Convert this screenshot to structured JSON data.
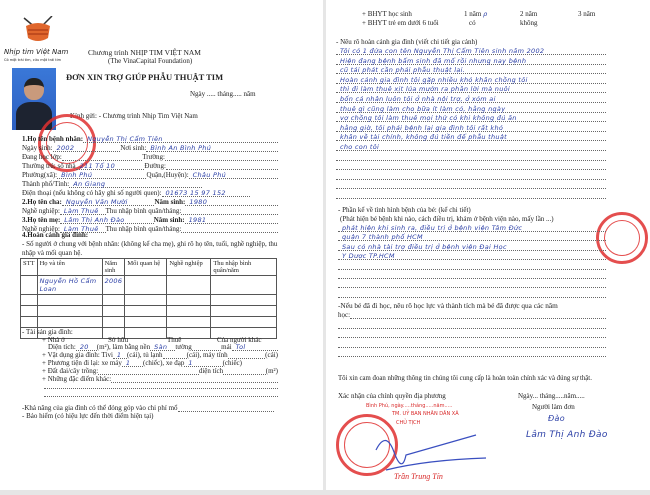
{
  "header": {
    "logo_text": "Nhịp tim Việt Nam",
    "logo_tagline": "Có một trái tim, cứu một trái tim",
    "program": "Chương trình NHỊP TIM VIỆT NAM",
    "foundation": "(The VinaCapital Foundation)",
    "title": "ĐƠN XIN TRỢ GIÚP PHẪU THUẬT TIM",
    "date_line": "Ngày ..... tháng..... năm",
    "addressee_label": "Kính gửi:",
    "addressee": "- Chương trình Nhịp Tim Việt Nam"
  },
  "patient": {
    "name_label": "1.Họ tên bệnh nhân:",
    "name": "Nguyễn Thị Cẩm Tiên",
    "dob_label": "Ngày sinh:",
    "dob": "2002",
    "birthplace_label": "Nơi sinh:",
    "birthplace": "Bình An Bình Phú",
    "grade_label": "Đang học lớp:",
    "school_label": "Trường:",
    "residence_label": "Thường trú: số nhà",
    "residence": "211 Tổ 10",
    "street_label": "Đường:",
    "ward_label": "Phường(xã):",
    "ward": "Bình Phú",
    "district_label": "Quận,(Huyện):",
    "district": "Châu Phú",
    "city_label": "Thành phố/Tỉnh:",
    "city": "An Giang",
    "phone_label": "Điện thoại (nếu không có hãy ghi số người quen):",
    "phone": "01673 15 97 152"
  },
  "father": {
    "label": "2.Họ tên cha:",
    "name": "Nguyễn Văn Mười",
    "birth_label": "Năm sinh:",
    "birth": "1980",
    "job_label": "Nghề nghiệp:",
    "job": "Làm Thuê",
    "income_label": "Thu nhập bình quân/tháng:"
  },
  "mother": {
    "label": "3.Họ tên mẹ:",
    "name": "Lâm Thị Anh Đào",
    "birth_label": "Năm sinh:",
    "birth": "1981",
    "job_label": "Nghề nghiệp:",
    "job": "Làm Thuê",
    "income_label": "Thu nhập bình quân/tháng:"
  },
  "family": {
    "heading": "4.Hoàn cảnh gia đình:",
    "note_1": "- Số người ở chung với bệnh nhân: (không kể cha mẹ), ghi rõ họ tên, tuổi, nghề nghiệp, thu",
    "note_2": "nhập và mối quan hệ.",
    "table": {
      "headers": [
        "STT",
        "Họ và tên",
        "Năm sinh",
        "Mối quan hệ",
        "Nghề nghiệp",
        "Thu nhập bình quân/năm"
      ],
      "rows": [
        [
          "",
          "Nguyễn Hồ Cẩm Loan",
          "2006",
          "",
          "",
          ""
        ],
        [
          "",
          "",
          "",
          "",
          "",
          ""
        ],
        [
          "",
          "",
          "",
          "",
          "",
          ""
        ],
        [
          "",
          "",
          "",
          "",
          "",
          ""
        ],
        [
          "",
          "",
          "",
          "",
          "",
          ""
        ]
      ]
    }
  },
  "assets": {
    "heading": "- Tài sản gia đình:",
    "house_label": "+ Nhà ở",
    "own": "Sở hữu",
    "rent": "Thuê",
    "others": "Của người khác",
    "area_label": "Diện tích:",
    "area": "20",
    "area_unit": "(m²), làm bằng nền",
    "floor": "Sàn",
    "wall_label": "tường",
    "roof_label": "mái",
    "roof": "Tol",
    "items_label": "+ Vật dụng gia đình: Tivi",
    "tv": "1",
    "fridge_label": "(cái), tủ lạnh",
    "pc_label": "(cái), máy tính",
    "unit_cai": "(cái)",
    "vehicle_label": "+ Phương tiện đi lại: xe máy",
    "motorbike": "1",
    "bike_label": "(chiếc), xe đạp",
    "bike": "1",
    "unit_chiec": "(chiếc)",
    "land_label": "+ Đất đai/cây trồng:",
    "land_area_label": "diện tích",
    "land_unit": "(m²)",
    "other_label": "+ Những đặc điểm khác:",
    "contribution_label": "-Khả năng của gia đình có thể đóng góp vào chi phí mổ",
    "insurance_label": "- Bảo hiểm (có hiệu lực đến thời điểm hiện tại)"
  },
  "insurance": {
    "student": "+ BHYT học sinh",
    "y1": "1 năm",
    "y1_mark": "ρ",
    "y2": "2 năm",
    "y3": "3 năm",
    "child": "+ BHYT trẻ em dưới 6 tuổi",
    "yes": "có",
    "no": "không"
  },
  "story": {
    "label": "- Nêu rõ hoàn cảnh gia đình (viết chi tiết gia cảnh)",
    "lines": [
      "Tôi có 1 đứa con tên Nguyễn Thị Cẩm Tiên sinh năm 2002",
      "Hiện đang bệnh bẩm sinh đã mổ rồi nhưng nay bệnh",
      "cũ tái phát cần phải phẫu thuật lại.",
      "Hoàn cảnh gia đình tôi gặp nhiều khó khăn chồng tôi",
      "thì đi làm thuê xịt lúa mướn ra phần lời mà nuôi",
      "bốn cá nhân luôn tôi ở nhà nội trợ, ở xóm ai",
      "thuê gì cũng làm cho bữa ít làm có, hằng ngày",
      "vợ chồng tôi làm thuê mọi thứ có khi không đủ ăn",
      "hằng giờ, tôi phải bệnh lại gia đình tôi rất khó",
      "khăn về tài chính, không đủ tiền để phẫu thuật",
      "cho con tôi"
    ]
  },
  "illness": {
    "label": "- Phần kể về tình hình bệnh của bé: (kể chi tiết)",
    "hint": "(Phát hiện bé bệnh khi nào, cách điều trị, khám ở bệnh viện nào, mấy lần ...)",
    "lines": [
      "phát hiện khi sinh ra, điều trị ở bệnh viện Tâm Đức",
      "quận 7 thành phố HCM",
      "Sau có nhà tài trợ điều trị ở bệnh viện Đại Học",
      "Y Dược TP.HCM"
    ]
  },
  "school": {
    "label_1": "-Nếu bé đã đi học, nêu rõ học lực và thành tích mà bé đã được qua các năm",
    "label_2": "học:"
  },
  "footer": {
    "pledge": "Tôi xin cam đoan những thông tin chúng tôi cung cấp là hoàn toàn chính xác và đúng sự thật.",
    "local_confirm": "Xác nhận của chính quyền địa phương",
    "date_line": "Ngày... tháng.....năm.....",
    "applicant_label": "Người làm đơn",
    "applicant_sig": "Đào",
    "applicant_name": "Lâm Thị Anh Đào",
    "stamp_date": "Bình Phú, ngày.....tháng.....năm.....",
    "stamp_org": "TM. UỶ BAN NHÂN DÂN XÃ",
    "stamp_title": "CHỦ TỊCH",
    "official_name": "Trần Trung Tín"
  },
  "colors": {
    "ink_blue": "#2b3fa6",
    "stamp_red": "#d82828"
  }
}
